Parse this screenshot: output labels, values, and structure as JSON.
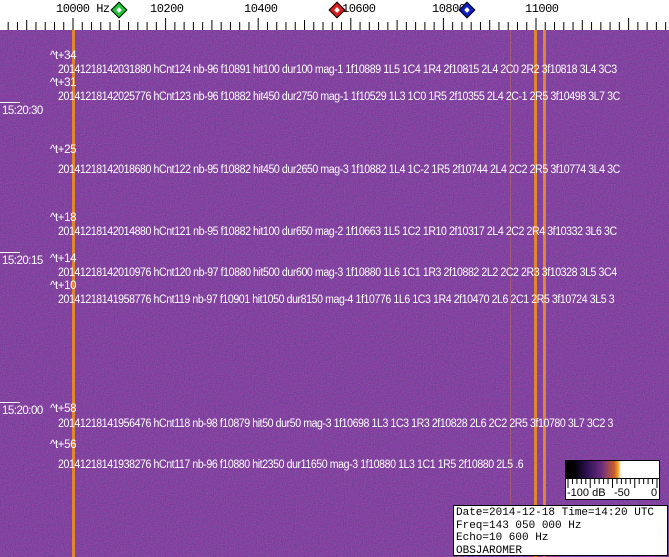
{
  "frequency_scale": {
    "labels": [
      "10000 Hz",
      "10200",
      "10400",
      "10600",
      "10800",
      "11000"
    ],
    "markers": [
      {
        "name": "green-marker",
        "color": "#22c23a"
      },
      {
        "name": "red-marker",
        "color": "#d42020"
      },
      {
        "name": "blue-marker",
        "color": "#1020c0"
      }
    ]
  },
  "time_labels": [
    "15:20:30",
    "15:20:15",
    "15:20:00"
  ],
  "event_tags": [
    "^t+34",
    "^t+31",
    "^t+25",
    "^t+18",
    "^t+14",
    "^t+10",
    "^t+58",
    "^t+56"
  ],
  "events": [
    "20141218142031880 hCnt124 nb-96 f10891 hit100 dur100 mag-1 1f10889 1L5 1C4 1R4 2f10815 2L4 2C0 2R2 3f10818 3L4 3C3",
    "20141218142025776 hCnt123 nb-96 f10882 hit450 dur2750 mag-1 1f10529 1L3 1C0 1R5 2f10355 2L4 2C-1 2R5 3f10498 3L7 3C",
    "20141218142018680 hCnt122 nb-95 f10882 hit450 dur2650 mag-3 1f10882 1L4 1C-2 1R5 2f10744 2L4 2C2 2R5 3f10774 3L4 3C",
    "20141218142014880 hCnt121 nb-95 f10882 hit100 dur650 mag-2 1f10663 1L5 1C2 1R10 2f10317 2L4 2C2 2R4 3f10332 3L6 3C",
    "20141218142010976 hCnt120 nb-97 f10880 hit500 dur600 mag-3 1f10880 1L6 1C1 1R3 2f10882 2L2 2C2 2R3 3f10328 3L5 3C4",
    "20141218141958776 hCnt119 nb-97 f10901 hit1050 dur8150 mag-4 1f10776 1L6 1C3 1R4 2f10470 2L6 2C1 2R5 3f10724 3L5 3",
    "20141218141956476 hCnt118 nb-98 f10879 hit50 dur50 mag-3 1f10698 1L3 1C3 1R3 2f10828 2L6 2C2 2R5 3f10780 3L7 3C2 3",
    "20141218141938276 hCnt117 nb-96 f10880 hit2350 dur11650 mag-3 1f10880 1L3 1C1 1R5 2f10880 2L5 .6"
  ],
  "colorbar": {
    "labels": [
      "-100 dB",
      "-50",
      "0"
    ]
  },
  "info": {
    "line1": "Date=2014-12-18 Time=14:20 UTC",
    "line2": "Freq=143 050 000 Hz",
    "line3": "Echo=10 600 Hz",
    "line4": "OBSJAROMER"
  },
  "colors": {
    "background": "#3d1f74",
    "carrier": "#e0862e",
    "text": "#ffffff"
  }
}
